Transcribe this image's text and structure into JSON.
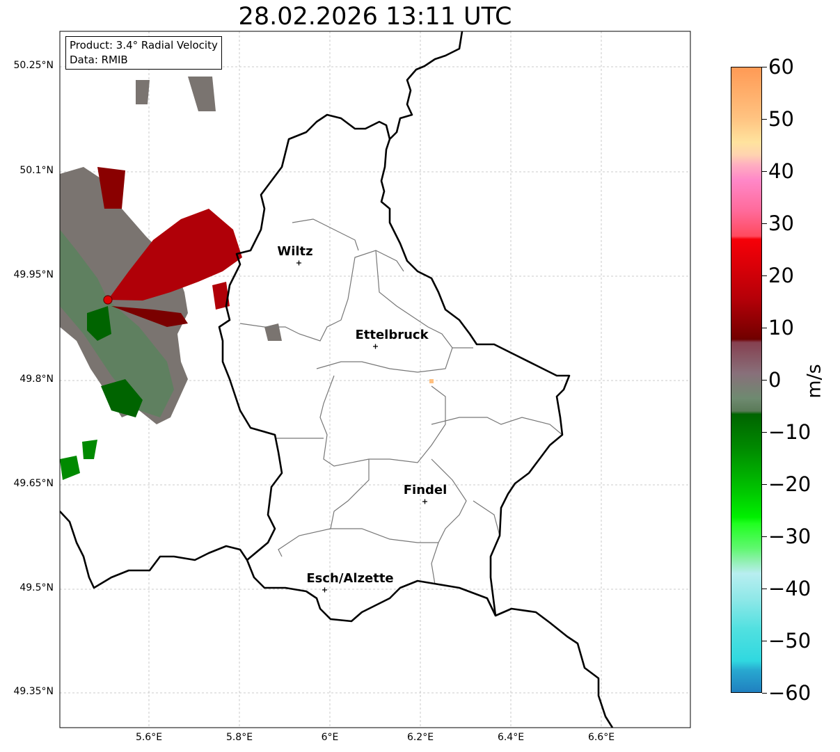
{
  "title": "28.02.2026 13:11 UTC",
  "legend": {
    "product": "Product: 3.4° Radial Velocity",
    "data": "Data: RMIB"
  },
  "lat_ticks": [
    "50.25°N",
    "50.1°N",
    "49.95°N",
    "49.8°N",
    "49.65°N",
    "49.5°N",
    "49.35°N"
  ],
  "lon_ticks": [
    "5.6°E",
    "5.8°E",
    "6°E",
    "6.2°E",
    "6.4°E",
    "6.6°E"
  ],
  "cities": [
    {
      "name": "Wiltz"
    },
    {
      "name": "Ettelbruck"
    },
    {
      "name": "Findel"
    },
    {
      "name": "Esch/Alzette"
    }
  ],
  "colorbar": {
    "label": "m/s",
    "ticks": [
      "60",
      "50",
      "40",
      "30",
      "20",
      "10",
      "0",
      "−10",
      "−20",
      "−30",
      "−40",
      "−50",
      "−60"
    ],
    "min": -60,
    "max": 60
  },
  "radar_site_color": "#e00000"
}
